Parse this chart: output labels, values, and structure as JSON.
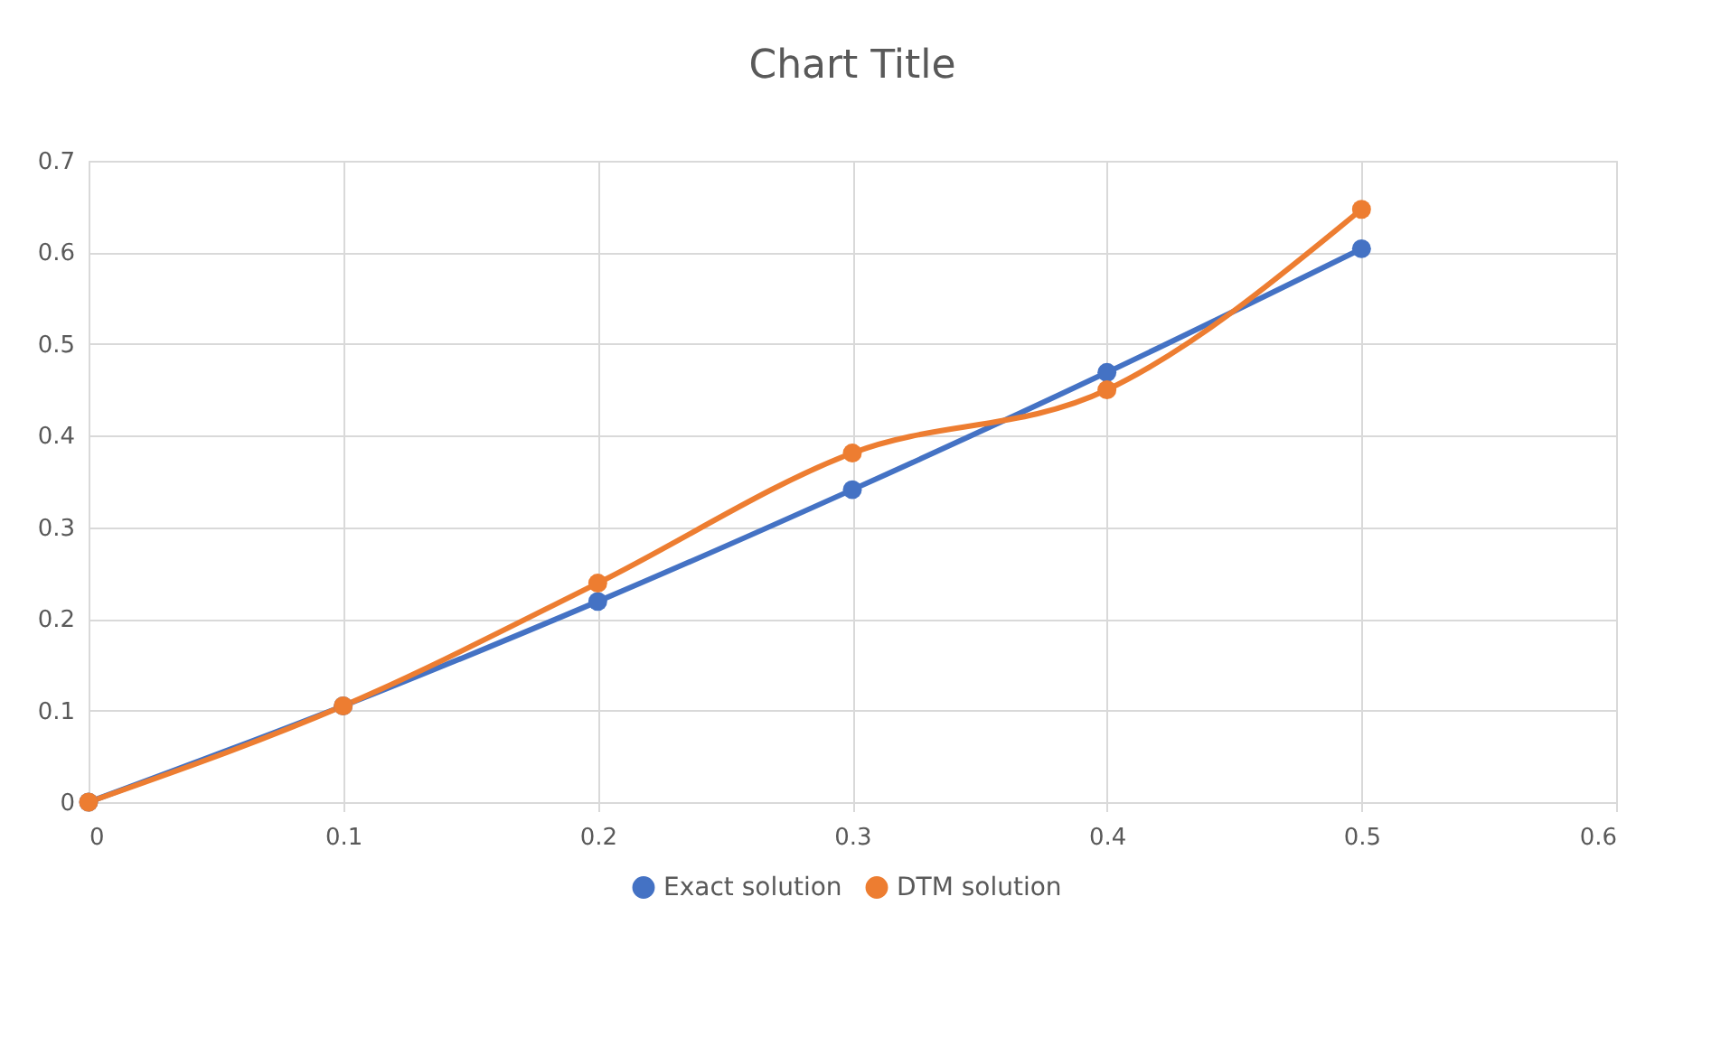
{
  "chart_data": {
    "type": "line",
    "title": "Chart Title",
    "x": [
      0,
      0.1,
      0.2,
      0.3,
      0.4,
      0.5
    ],
    "series": [
      {
        "name": "Exact solution",
        "color": "#4472c4",
        "values": [
          0,
          0.105,
          0.219,
          0.341,
          0.469,
          0.604
        ]
      },
      {
        "name": "DTM solution",
        "color": "#ed7d31",
        "values": [
          0,
          0.105,
          0.239,
          0.381,
          0.45,
          0.647
        ]
      }
    ],
    "xlim": [
      0,
      0.6
    ],
    "xticks": [
      0,
      0.1,
      0.2,
      0.3,
      0.4,
      0.5,
      0.6
    ],
    "ylim": [
      0,
      0.7
    ],
    "yticks": [
      0,
      0.1,
      0.2,
      0.3,
      0.4,
      0.5,
      0.6,
      0.7
    ],
    "grid": true,
    "legend": "bottom",
    "marker": "circle",
    "line_style": "solid"
  }
}
